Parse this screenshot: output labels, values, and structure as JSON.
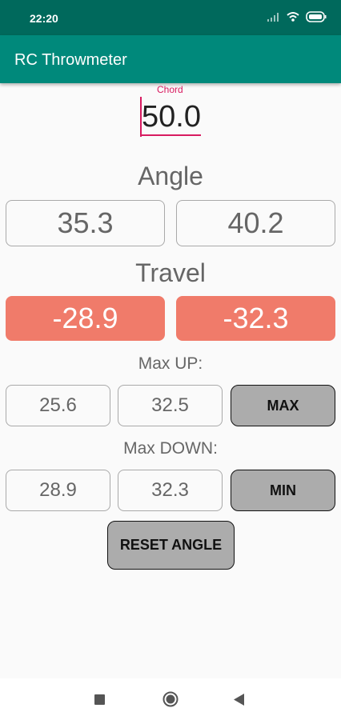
{
  "status": {
    "time": "22:20"
  },
  "app": {
    "title": "RC Throwmeter"
  },
  "chord": {
    "label": "Chord",
    "value": "50.0"
  },
  "angle": {
    "heading": "Angle",
    "left": "35.3",
    "right": "40.2"
  },
  "travel": {
    "heading": "Travel",
    "left": "-28.9",
    "right": "-32.3",
    "color": "#f07b6a"
  },
  "max_up": {
    "heading": "Max UP:",
    "left": "25.6",
    "right": "32.5",
    "button": "MAX"
  },
  "max_down": {
    "heading": "Max DOWN:",
    "left": "28.9",
    "right": "32.3",
    "button": "MIN"
  },
  "reset": {
    "label": "RESET ANGLE"
  },
  "theme": {
    "primary": "#00897b",
    "primary_dark": "#00695c",
    "accent": "#d81b60"
  },
  "nav": {
    "icons": [
      "recents-icon",
      "home-icon",
      "back-icon"
    ]
  }
}
